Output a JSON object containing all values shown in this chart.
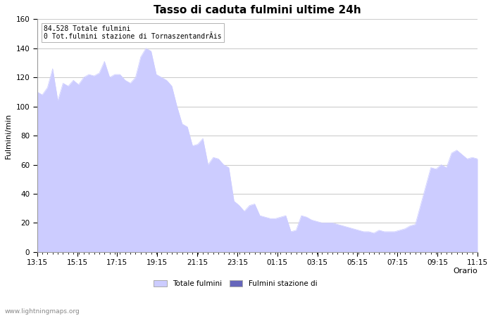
{
  "title": "Tasso di caduta fulmini ultime 24h",
  "xlabel": "Orario",
  "ylabel": "Fulmini/min",
  "ylim": [
    0,
    160
  ],
  "yticks": [
    0,
    20,
    40,
    60,
    80,
    100,
    120,
    140,
    160
  ],
  "annotation_line1": "84.528 Totale fulmini",
  "annotation_line2": "0 Tot.fulmini stazione di TornaszentandrÃis",
  "watermark": "www.lightningmaps.org",
  "legend_label1": "Totale fulmini",
  "legend_label2": "Fulmini stazione di",
  "fill_color1": "#ccccff",
  "fill_color2": "#6666bb",
  "x_ticks_labels": [
    "13:15",
    "15:15",
    "17:15",
    "19:15",
    "21:15",
    "23:15",
    "01:15",
    "03:15",
    "05:15",
    "07:15",
    "09:15",
    "11:15"
  ],
  "background_color": "#ffffff",
  "grid_color": "#cccccc",
  "title_fontsize": 11,
  "tick_fontsize": 7.5,
  "label_fontsize": 8,
  "values": [
    110,
    108,
    113,
    126,
    104,
    116,
    114,
    118,
    115,
    120,
    122,
    121,
    123,
    131,
    120,
    122,
    122,
    118,
    116,
    120,
    134,
    140,
    138,
    122,
    120,
    118,
    114,
    100,
    88,
    86,
    73,
    74,
    78,
    60,
    65,
    64,
    60,
    58,
    35,
    32,
    28,
    32,
    33,
    25,
    24,
    23,
    23,
    24,
    25,
    14,
    15,
    25,
    24,
    22,
    21,
    20,
    20,
    20,
    19,
    18,
    17,
    16,
    15,
    14,
    14,
    13,
    15,
    14,
    14,
    14,
    15,
    16,
    18,
    19,
    32,
    45,
    58,
    57,
    60,
    58,
    68,
    70,
    67,
    64,
    65,
    64
  ]
}
